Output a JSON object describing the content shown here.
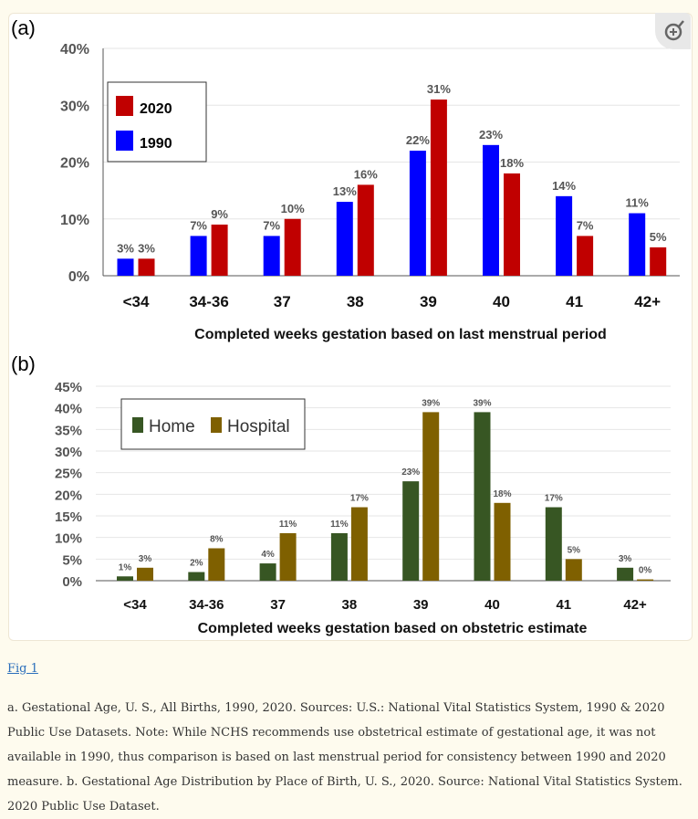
{
  "figure_link": "Fig 1",
  "caption": "a. Gestational Age, U. S., All Births, 1990, 2020. Sources: U.S.: National Vital Statistics System, 1990 & 2020 Public Use Datasets. Note: While NCHS recommends use obstetrical estimate of gestational age, it was not available in 1990, thus comparison is based on last menstrual period for consistency between 1990 and 2020 measure. b. Gestational Age Distribution by Place of Birth, U. S., 2020. Source: National Vital Statistics System. 2020 Public Use Dataset.",
  "zoom_icon": "magnifier-plus-icon",
  "chart_data": [
    {
      "panel": "(a)",
      "type": "bar",
      "categories": [
        "<34",
        "34-36",
        "37",
        "38",
        "39",
        "40",
        "41",
        "42+"
      ],
      "xlabel": "Completed weeks gestation based on last menstrual period",
      "ylabel": "",
      "ylim": [
        0,
        40
      ],
      "yticks": [
        "0%",
        "10%",
        "20%",
        "30%",
        "40%"
      ],
      "grid": true,
      "legend": "top-left",
      "series": [
        {
          "name": "1990",
          "color": "#0000ff",
          "values": [
            3,
            7,
            7,
            13,
            22,
            23,
            14,
            11
          ],
          "labels": [
            "3%",
            "7%",
            "7%",
            "13%",
            "22%",
            "23%",
            "14%",
            "11%"
          ]
        },
        {
          "name": "2020",
          "color": "#c00000",
          "values": [
            3,
            9,
            10,
            16,
            31,
            18,
            7,
            5
          ],
          "labels": [
            "3%",
            "9%",
            "10%",
            "16%",
            "31%",
            "18%",
            "7%",
            "5%"
          ]
        }
      ]
    },
    {
      "panel": "(b)",
      "type": "bar",
      "categories": [
        "<34",
        "34-36",
        "37",
        "38",
        "39",
        "40",
        "41",
        "42+"
      ],
      "xlabel": "Completed weeks gestation based on obstetric estimate",
      "ylabel": "",
      "ylim": [
        0,
        45
      ],
      "yticks": [
        "0%",
        "5%",
        "10%",
        "15%",
        "20%",
        "25%",
        "30%",
        "35%",
        "40%",
        "45%"
      ],
      "grid": true,
      "legend": "top-left",
      "series": [
        {
          "name": "Home",
          "color": "#375623",
          "values": [
            1,
            2,
            4,
            11,
            23,
            39,
            17,
            3
          ],
          "labels": [
            "1%",
            "2%",
            "4%",
            "11%",
            "23%",
            "39%",
            "17%",
            "3%"
          ]
        },
        {
          "name": "Hospital",
          "color": "#7f6000",
          "values": [
            3,
            7.5,
            11,
            17,
            39,
            18,
            5,
            0.3
          ],
          "labels": [
            "3%",
            "8%",
            "11%",
            "17%",
            "39%",
            "18%",
            "5%",
            "0%"
          ]
        }
      ]
    }
  ]
}
